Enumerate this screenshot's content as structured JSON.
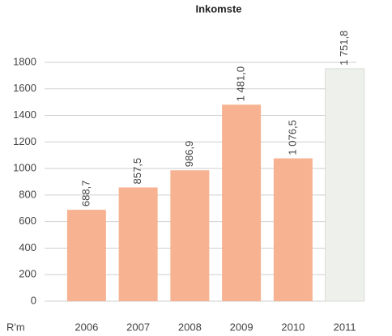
{
  "chart_data": {
    "type": "bar",
    "title": "Inkomste",
    "y_unit_label": "R'm",
    "categories": [
      "2006",
      "2007",
      "2008",
      "2009",
      "2010",
      "2011"
    ],
    "values": [
      688.7,
      857.5,
      986.9,
      1481.0,
      1076.5,
      1751.8
    ],
    "value_labels": [
      "688,7",
      "857,5",
      "986,9",
      "1 481,0",
      "1 076,5",
      "1 751,8"
    ],
    "colors": [
      "#f7b291",
      "#f7b291",
      "#f7b291",
      "#f7b291",
      "#f7b291",
      "#eef0ec"
    ],
    "ylim": [
      0,
      1800
    ],
    "yticks": [
      0,
      200,
      400,
      600,
      800,
      1000,
      1200,
      1400,
      1600,
      1800
    ],
    "grid": true
  }
}
